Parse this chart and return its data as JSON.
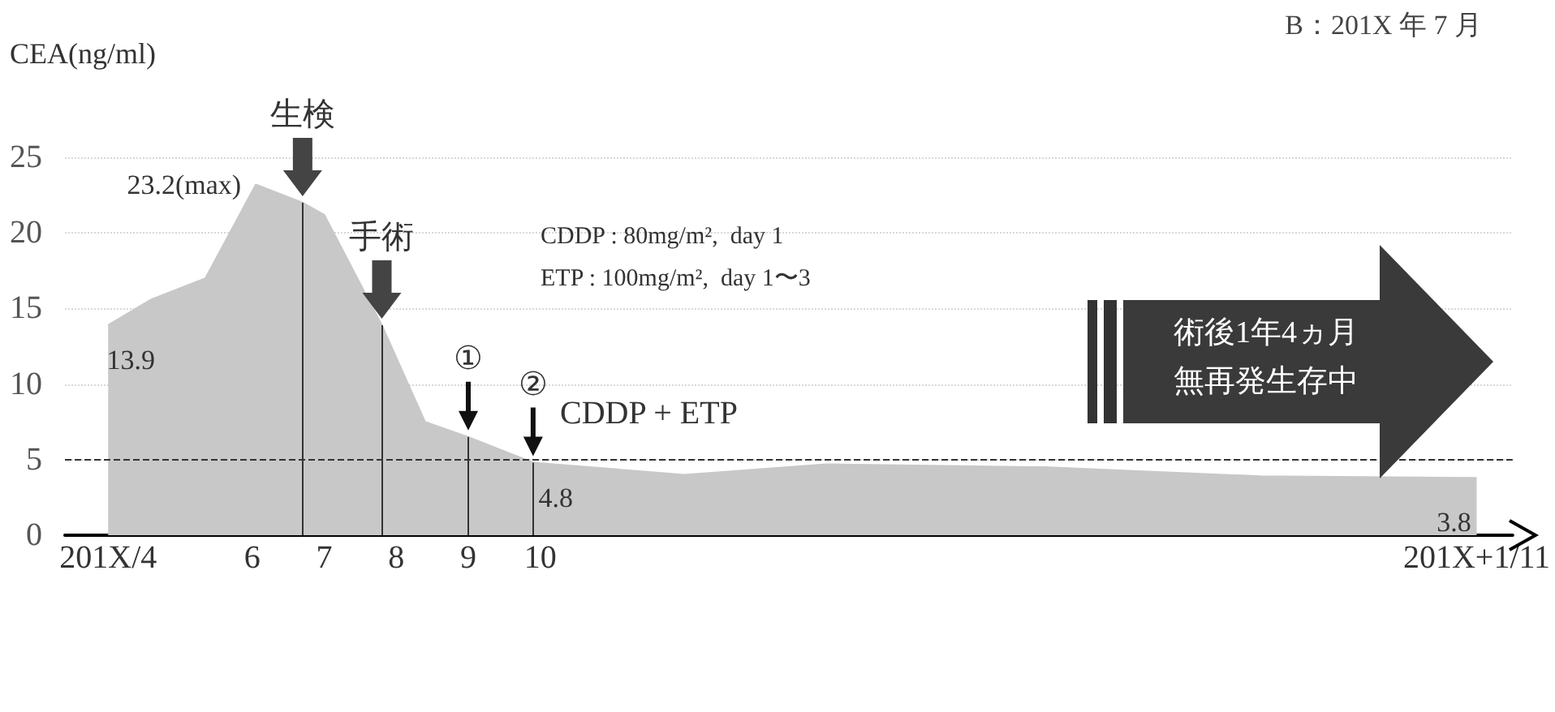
{
  "chart_data": {
    "type": "area",
    "title": "B：201X 年 7 月",
    "ylabel": "CEA(ng/ml)",
    "x": [
      4,
      4.6,
      5.35,
      6.05,
      6.7,
      7,
      7.8,
      8.4,
      9,
      9.9,
      12,
      14,
      17,
      20,
      23
    ],
    "values": [
      13.9,
      15.6,
      17,
      23.2,
      22,
      21.2,
      13.9,
      7.5,
      6.5,
      4.8,
      4,
      4.7,
      4.5,
      3.9,
      3.8
    ],
    "value_labels": [
      "13.9",
      null,
      null,
      "23.2(max)",
      null,
      null,
      null,
      null,
      null,
      "4.8",
      null,
      null,
      null,
      null,
      "3.8"
    ],
    "color": "#c8c8c8",
    "xlim": [
      3.4,
      23.5
    ],
    "xticks": [
      {
        "value": 4,
        "label": "201X/4"
      },
      6,
      7,
      8,
      9,
      10,
      {
        "value": 23,
        "label": "201X+1/11"
      }
    ],
    "ylim": [
      0,
      25
    ],
    "yticks": [
      0,
      5,
      10,
      15,
      20,
      25
    ],
    "grid": "y",
    "ref_lines": [
      {
        "axis": "y",
        "value": 5,
        "line_style": "dashed",
        "color": "#333333"
      },
      {
        "axis": "x",
        "value": 6.7,
        "color": "#333333"
      },
      {
        "axis": "x",
        "value": 7.8,
        "color": "#333333"
      },
      {
        "axis": "x",
        "value": 9,
        "color": "#333333"
      },
      {
        "axis": "x",
        "value": 9.9,
        "color": "#333333"
      }
    ],
    "annotations": [
      {
        "text": "生検",
        "x": 6.7,
        "y": 22
      },
      {
        "text": "手術",
        "x": 7.8,
        "y": 13.9
      },
      {
        "text": "①",
        "x": 9,
        "y": 6.5
      },
      {
        "text": "②",
        "x": 9.9,
        "y": 4.8
      },
      "CDDP + ETP",
      "CDDP : 80mg/m²,  day 1",
      "ETP : 100mg/m²,  day 1〜3",
      "術後1年4ヵ月",
      "無再発生存中"
    ]
  }
}
